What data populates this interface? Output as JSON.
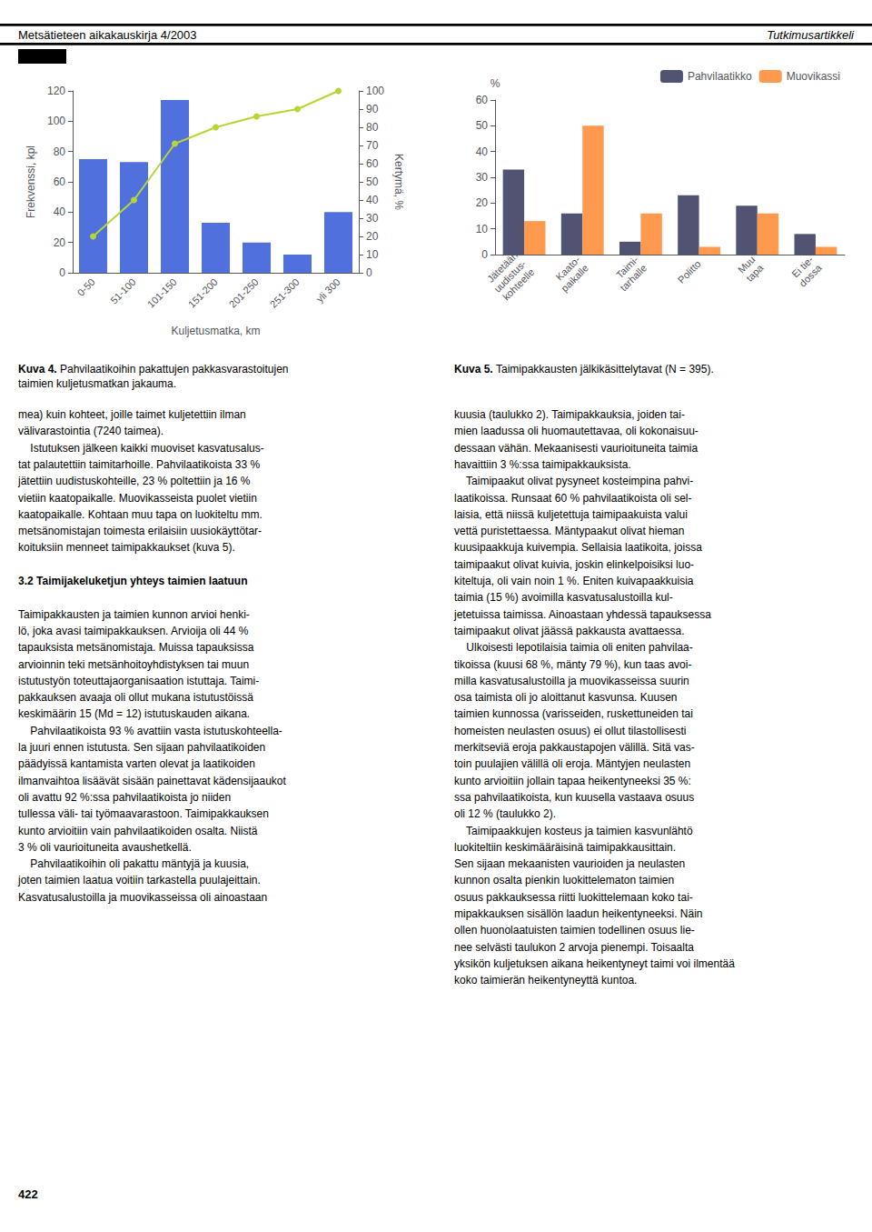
{
  "header_left": "Metsätieteen aikakauskirja 4/2003",
  "header_right": "Tutkimusartikkeli",
  "chart_data": [
    {
      "type": "bar",
      "title": "Kuva 4.",
      "subtitle": "Pahvilaatikoihin pakattujen pakkasvarastoitujen\ntaimien kuljetusmatkan jakauma.",
      "categories": [
        "0-50",
        "51-100",
        "101-150",
        "151-200",
        "201-250",
        "251-300",
        "yli 300"
      ],
      "xlabel": "Kuljetusmatka, km",
      "ylabel": "Frekvenssi, kpl",
      "y2label": "Kertymä, %",
      "ylim": [
        0,
        120
      ],
      "yticks": [
        0,
        20,
        40,
        60,
        80,
        100,
        120
      ],
      "y2lim": [
        0,
        100
      ],
      "y2ticks": [
        0,
        10,
        20,
        30,
        40,
        50,
        60,
        70,
        80,
        90,
        100
      ],
      "grid": false,
      "series": [
        {
          "type": "bar",
          "values": [
            75,
            73,
            114,
            33,
            20,
            12,
            40
          ]
        },
        {
          "type": "line",
          "axis": "y2",
          "marker": "circle",
          "values": [
            20,
            40,
            71,
            80,
            86,
            90,
            100
          ]
        }
      ]
    },
    {
      "type": "bar",
      "title": "Kuva 5.",
      "subtitle": "Taimipakkausten jälkikäsittelytavat (N = 395).",
      "categories": [
        "Jätetään\nuudistus-\nkohteelle",
        "Kaato-\npaikalle",
        "Taimi-\ntarhalle",
        "Politto",
        "Muu\ntapa",
        "Ei tie-\ndossa"
      ],
      "ylabel": "%",
      "ylim": [
        0,
        60
      ],
      "yticks": [
        0,
        10,
        20,
        30,
        40,
        50,
        60
      ],
      "grid": false,
      "legend": "upper right",
      "series": [
        {
          "name": "Pahvilaatikko",
          "values": [
            33,
            16,
            5,
            23,
            19,
            8
          ]
        },
        {
          "name": "Muovikassi",
          "values": [
            13,
            50,
            16,
            3,
            16,
            3
          ]
        }
      ]
    }
  ],
  "body_text_left": [
    "mea) kuin kohteet, joille taimet kuljetettiin ilman",
    "välivarastointia (7240 taimea).",
    "    Istutuksen jälkeen kaikki muoviset kasvatusalus-",
    "tat palautettiin taimitarhoille. Pahvilaatikoista 33 %",
    "jätettiin uudistuskohteille, 23 % poltettiin ja 16 %",
    "vietiin kaatopaikalle. Muovikasseista puolet vietiin",
    "kaatopaikalle. Kohtaan muu tapa on luokiteltu mm.",
    "metsänomistajan toimesta erilaisiin uusiokäyttötar-",
    "koituksiin menneet taimipakkaukset (kuva 5).",
    null,
    {
      "heading": "3.2 Taimijakeluketjun yhteys taimien laatuun"
    },
    null,
    "Taimipakkausten ja taimien kunnon arvioi henki-",
    "lö, joka avasi taimipakkauksen. Arvioija oli 44 %",
    "tapauksista metsänomistaja. Muissa tapauksissa",
    "arvioinnin teki metsänhoitoyhdistyksen tai muun",
    "istutustyön toteuttajaorganisaation istuttaja. Taimi-",
    "pakkauksen avaaja oli ollut mukana istutustöissä",
    "keskimäärin 15 (Md = 12) istutuskauden aikana.",
    "    Pahvilaatikoista 93 % avattiin vasta istutuskohteella-",
    "la juuri ennen istutusta. Sen sijaan pahvilaatikoiden",
    "päädyissä kantamista varten olevat ja laatikoiden",
    "ilmanvaihtoa lisäävät sisään painettavat kädensijaaukot",
    "oli avattu 92 %:ssa pahvilaatikoista jo niiden",
    "tullessa väli- tai työmaavarastoon. Taimipakkauksen",
    "kunto arvioitiin vain pahvilaatikoiden osalta. Niistä",
    "3 % oli vaurioituneita avaushetkellä.",
    "    Pahvilaatikoihin oli pakattu mäntyjä ja kuusia,",
    "joten taimien laatua voitiin tarkastella puulajeittain.",
    "Kasvatusalustoilla ja muovikasseissa oli ainoastaan"
  ],
  "body_text_right": [
    "kuusia (taulukko 2). Taimipakkauksia, joiden tai-",
    "mien laadussa oli huomautettavaa, oli kokonaisuu-",
    "dessaan vähän. Mekaanisesti vaurioituneita taimia",
    "havaittiin 3 %:ssa taimipakkauksista.",
    "    Taimipaakut olivat pysyneet kosteimpina pahvi-",
    "laatikoissa. Runsaat 60 % pahvilaatikoista oli sel-",
    "laisia, että niissä kuljetettuja taimipaakuista valui",
    "vettä puristettaessa. Mäntypaakut olivat hieman",
    "kuusipaakkuja kuivempia. Sellaisia laatikoita, joissa",
    "taimipaakut olivat kuivia, joskin elinkelpoisiksi luo-",
    "kiteltuja, oli vain noin 1 %. Eniten kuivapaakkuisia",
    "taimia (15 %) avoimilla kasvatusalustoilla kul-",
    "jetetuissa taimissa. Ainoastaan yhdessä tapauksessa",
    "taimipaakut olivat jäässä pakkausta avattaessa.",
    "    Ulkoisesti lepotilaisia taimia oli eniten pahvilaa-",
    "tikoissa (kuusi 68 %, mänty 79 %), kun taas avoi-",
    "milla kasvatusalustoilla ja muovikasseissa suurin",
    "osa taimista oli jo aloittanut kasvunsa. Kuusen",
    "taimien kunnossa (varisseiden, ruskettuneiden tai",
    "homeisten neulasten osuus) ei ollut tilastollisesti",
    "merkitseviä eroja pakkaustapojen välillä. Sitä vas-",
    "toin puulajien välillä oli eroja. Mäntyjen neulasten",
    "kunto arvioitiin jollain tapaa heikentyneeksi 35 %:",
    "ssa pahvilaatikoista, kun kuusella vastaava osuus",
    "oli 12 % (taulukko 2).",
    "    Taimipaakkujen kosteus ja taimien kasvunlähtö",
    "luokiteltiin keskimääräisinä taimipakkausittain.",
    "Sen sijaan mekaanisten vaurioiden ja neulasten",
    "kunnon osalta pienkin luokittelematon taimien",
    "osuus pakkauksessa riitti luokittelemaan koko tai-",
    "mipakkauksen sisällön laadun heikentyneeksi. Näin",
    "ollen huonolaatuisten taimien todellinen osuus lie-",
    "nee selvästi taulukon 2 arvoja pienempi. Toisaalta",
    "yksikön kuljetuksen aikana heikentyneyt taimi voi ilmentää",
    "koko taimierän heikentyneyttä kuntoa."
  ],
  "page_number": "422"
}
